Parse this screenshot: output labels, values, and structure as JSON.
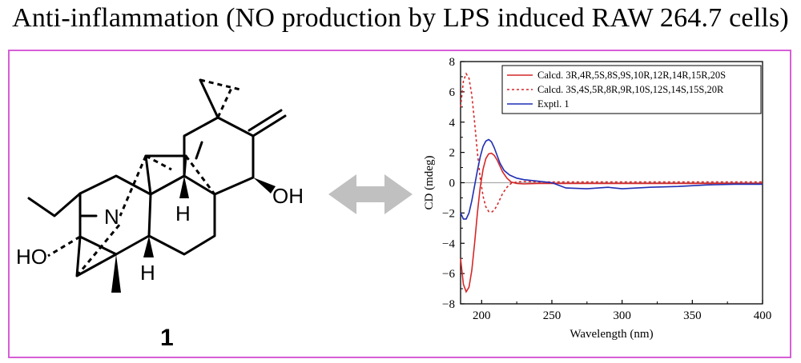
{
  "title": "Anti-inflammation (NO production by LPS induced RAW 264.7 cells)",
  "structure": {
    "labels": {
      "oh_right": "OH",
      "oh_left": "HO",
      "nitrogen": "N",
      "h_upper": "H",
      "h_lower": "H"
    },
    "compound_number": "1"
  },
  "arrow_icon": "double-headed-arrow-icon",
  "colors": {
    "frame": "#d65ed6",
    "arrow": "#c0c0c0",
    "calcd_red": "#d62728",
    "exptl_blue": "#1f2fb4"
  },
  "chart_data": {
    "type": "line",
    "xlabel": "Wavelength (nm)",
    "ylabel": "CD (mdeg)",
    "xlim": [
      185,
      400
    ],
    "ylim": [
      -8,
      8
    ],
    "xticks": [
      200,
      250,
      300,
      350,
      400
    ],
    "yticks": [
      -8,
      -6,
      -4,
      -2,
      0,
      2,
      4,
      6,
      8
    ],
    "legend_position": "top-right",
    "series": [
      {
        "name": "Calcd. 3R,4R,5S,8S,9S,10R,12R,14R,15R,20S",
        "style": "solid",
        "color": "#d62728",
        "x": [
          185,
          187,
          189,
          191,
          193,
          195,
          197,
          199,
          201,
          203,
          205,
          207,
          209,
          211,
          213,
          215,
          218,
          221,
          225,
          230,
          240,
          260,
          300,
          350,
          400
        ],
        "y": [
          -5.0,
          -6.7,
          -7.2,
          -6.9,
          -5.8,
          -4.0,
          -2.0,
          -0.3,
          0.9,
          1.6,
          1.9,
          1.95,
          1.8,
          1.5,
          1.1,
          0.7,
          0.3,
          0.05,
          -0.05,
          -0.08,
          -0.05,
          -0.05,
          -0.05,
          -0.05,
          -0.05
        ]
      },
      {
        "name": "Calcd. 3S,4S,5R,8R,9R,10S,12S,14S,15S,20R",
        "style": "dashed",
        "color": "#d62728",
        "x": [
          185,
          187,
          189,
          191,
          193,
          195,
          197,
          199,
          201,
          203,
          205,
          207,
          209,
          211,
          213,
          215,
          218,
          221,
          225,
          230,
          240,
          260,
          300,
          350,
          400
        ],
        "y": [
          5.0,
          6.7,
          7.2,
          6.9,
          5.8,
          4.0,
          2.0,
          0.3,
          -0.9,
          -1.6,
          -1.9,
          -1.95,
          -1.8,
          -1.5,
          -1.1,
          -0.7,
          -0.3,
          -0.05,
          0.05,
          0.08,
          0.05,
          0.05,
          0.05,
          0.05,
          0.05
        ]
      },
      {
        "name": "Exptl. 1",
        "style": "solid",
        "color": "#1f2fb4",
        "x": [
          185,
          187,
          189,
          191,
          193,
          195,
          197,
          199,
          201,
          203,
          205,
          207,
          209,
          211,
          213,
          216,
          220,
          225,
          230,
          240,
          250,
          260,
          275,
          290,
          300,
          320,
          340,
          360,
          380,
          400
        ],
        "y": [
          -2.0,
          -2.4,
          -2.4,
          -2.0,
          -1.2,
          -0.2,
          0.8,
          1.7,
          2.4,
          2.75,
          2.85,
          2.7,
          2.3,
          1.8,
          1.3,
          0.8,
          0.5,
          0.3,
          0.2,
          0.1,
          0.0,
          -0.35,
          -0.4,
          -0.3,
          -0.4,
          -0.3,
          -0.25,
          -0.15,
          -0.1,
          -0.1
        ]
      }
    ]
  }
}
